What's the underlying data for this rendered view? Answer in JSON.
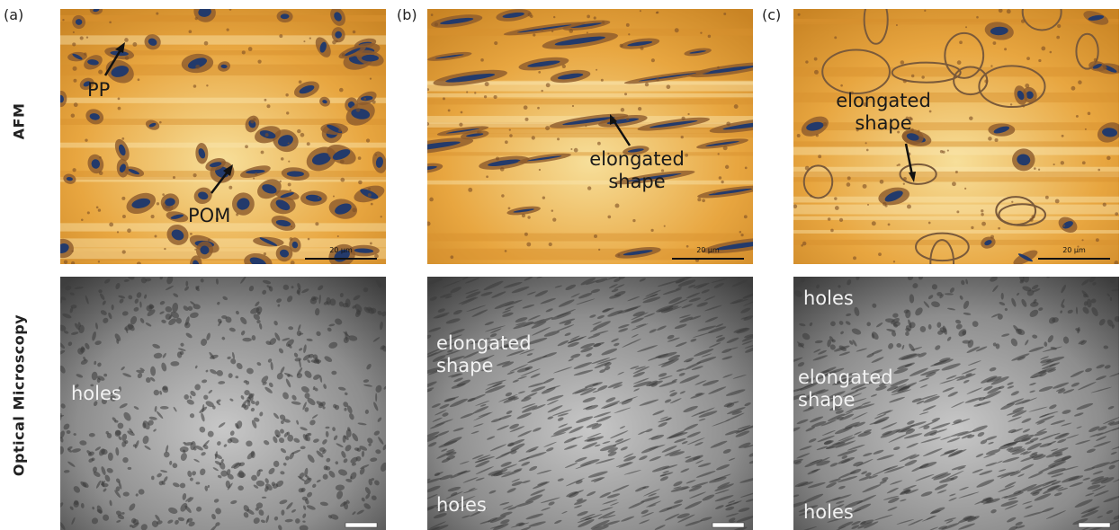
{
  "panel_labels": [
    "(a)",
    "(b)",
    "(c)"
  ],
  "row_labels": [
    "AFM",
    "Optical Microscopy"
  ],
  "afm": [
    {
      "annotations": [
        "PP",
        "POM"
      ],
      "scale_bar": "20 µm"
    },
    {
      "annotations": [
        "elongated shape"
      ],
      "scale_bar": "20 µm"
    },
    {
      "annotations": [
        "elongated shape"
      ],
      "scale_bar": "20 µm"
    }
  ],
  "optical": [
    {
      "annotations": [
        "holes"
      ]
    },
    {
      "annotations": [
        "elongated shape",
        "holes"
      ]
    },
    {
      "annotations": [
        "holes",
        "elongated shape",
        "holes"
      ]
    }
  ]
}
